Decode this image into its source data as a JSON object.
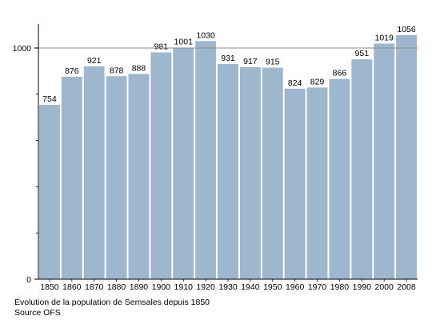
{
  "chart_data": {
    "type": "bar",
    "categories": [
      "1850",
      "1860",
      "1870",
      "1880",
      "1890",
      "1900",
      "1910",
      "1920",
      "1930",
      "1940",
      "1950",
      "1960",
      "1970",
      "1980",
      "1990",
      "2000",
      "2008"
    ],
    "values": [
      754,
      876,
      921,
      878,
      888,
      981,
      1001,
      1030,
      931,
      917,
      915,
      824,
      829,
      866,
      951,
      1019,
      1056
    ],
    "data_labels": [
      "754",
      "876",
      "921",
      "878",
      "888",
      "981",
      "1001",
      "1030",
      "931",
      "917",
      "915",
      "824",
      "829",
      "866",
      "951",
      "1019",
      "1056"
    ],
    "ylim": [
      0,
      1100
    ],
    "y_ticks": [
      0,
      1000
    ],
    "y_tick_labels": [
      "0",
      "1000"
    ],
    "y_minor_ticks": [
      200,
      400,
      600,
      800
    ],
    "reference_line": 1000,
    "bar_color": "#9fb6cf",
    "grid": false
  },
  "caption": {
    "line1": "Évolution de la population de Semsales depuis 1850",
    "line2": "Source OFS"
  }
}
